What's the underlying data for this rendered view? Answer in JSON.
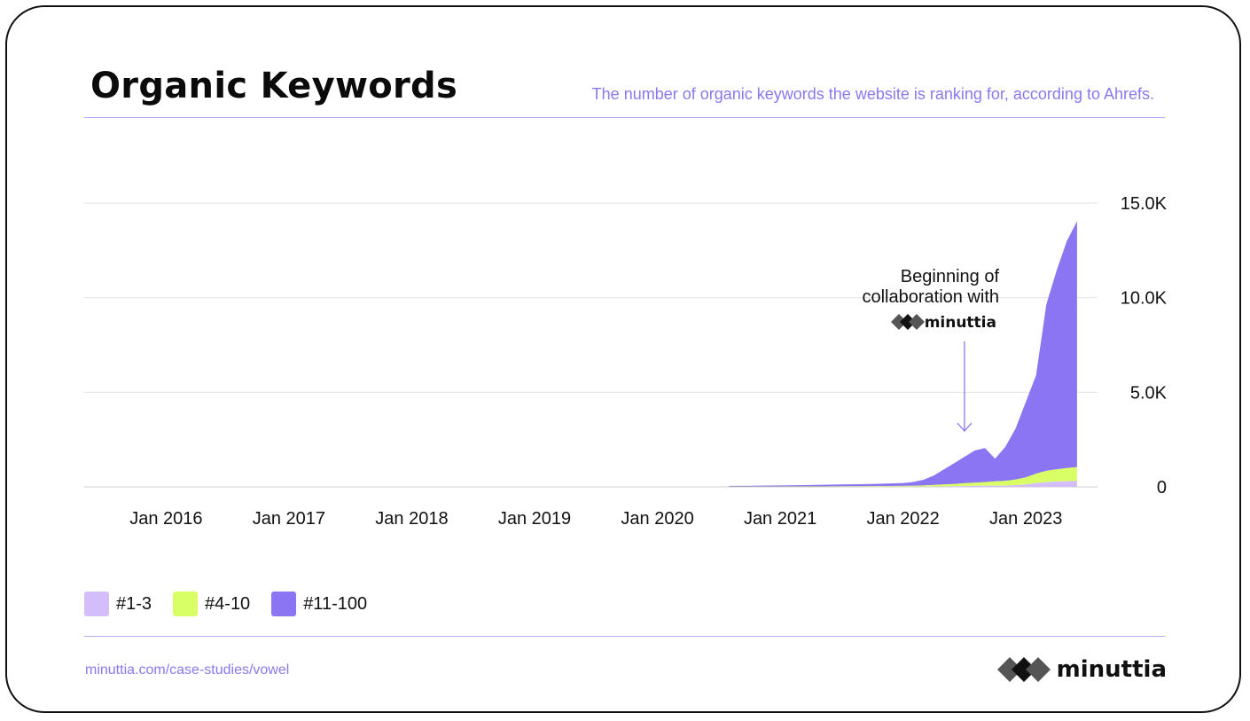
{
  "header": {
    "title": "Organic Keywords",
    "subtitle": "The number of organic keywords the website is ranking for, according to Ahrefs."
  },
  "footer": {
    "url": "minuttia.com/case-studies/vowel",
    "brand": "minuttia"
  },
  "colors": {
    "top3": "#d4bdfb",
    "top4_10": "#d9ff66",
    "top11_100": "#8b75f3",
    "accent": "#8a78ef"
  },
  "chart_data": {
    "type": "area",
    "stacked": true,
    "x_tick_labels": [
      "Jan 2016",
      "Jan 2017",
      "Jan 2018",
      "Jan 2019",
      "Jan 2020",
      "Jan 2021",
      "Jan 2022",
      "Jan 2023"
    ],
    "x_tick_values": [
      "2016-01",
      "2017-01",
      "2018-01",
      "2019-01",
      "2020-01",
      "2021-01",
      "2022-01",
      "2023-01"
    ],
    "x_range": [
      "2015-05",
      "2023-08"
    ],
    "y_tick_labels": [
      "0",
      "5.0K",
      "10.0K",
      "15.0K"
    ],
    "y_tick_values": [
      0,
      5000,
      10000,
      15000
    ],
    "ylim": [
      0,
      15000
    ],
    "y_axis_side": "right",
    "grid": true,
    "legend_position": "bottom-left",
    "x": [
      "2020-08",
      "2020-10",
      "2021-01",
      "2021-04",
      "2021-07",
      "2021-10",
      "2022-01",
      "2022-02",
      "2022-03",
      "2022-04",
      "2022-05",
      "2022-06",
      "2022-07",
      "2022-08",
      "2022-09",
      "2022-10",
      "2022-11",
      "2022-12",
      "2023-01",
      "2023-02",
      "2023-03",
      "2023-04",
      "2023-05",
      "2023-06"
    ],
    "series": [
      {
        "name": "#1-3",
        "color_key": "top3",
        "values": [
          0,
          0,
          0,
          0,
          5,
          5,
          10,
          10,
          15,
          20,
          25,
          30,
          40,
          50,
          55,
          60,
          60,
          90,
          120,
          200,
          250,
          280,
          300,
          320
        ]
      },
      {
        "name": "#4-10",
        "color_key": "top4_10",
        "values": [
          10,
          10,
          15,
          20,
          25,
          30,
          40,
          50,
          60,
          80,
          100,
          120,
          150,
          170,
          200,
          230,
          260,
          300,
          380,
          500,
          600,
          650,
          700,
          720
        ]
      },
      {
        "name": "#11-100",
        "color_key": "top11_100",
        "values": [
          40,
          50,
          60,
          80,
          100,
          120,
          150,
          200,
          300,
          500,
          800,
          1100,
          1400,
          1700,
          1800,
          1200,
          1800,
          2700,
          4000,
          5200,
          8800,
          10500,
          12000,
          13000
        ]
      }
    ],
    "annotation": {
      "lines": [
        "Beginning of",
        "collaboration with"
      ],
      "brand": "minuttia",
      "x": "2022-07"
    }
  }
}
